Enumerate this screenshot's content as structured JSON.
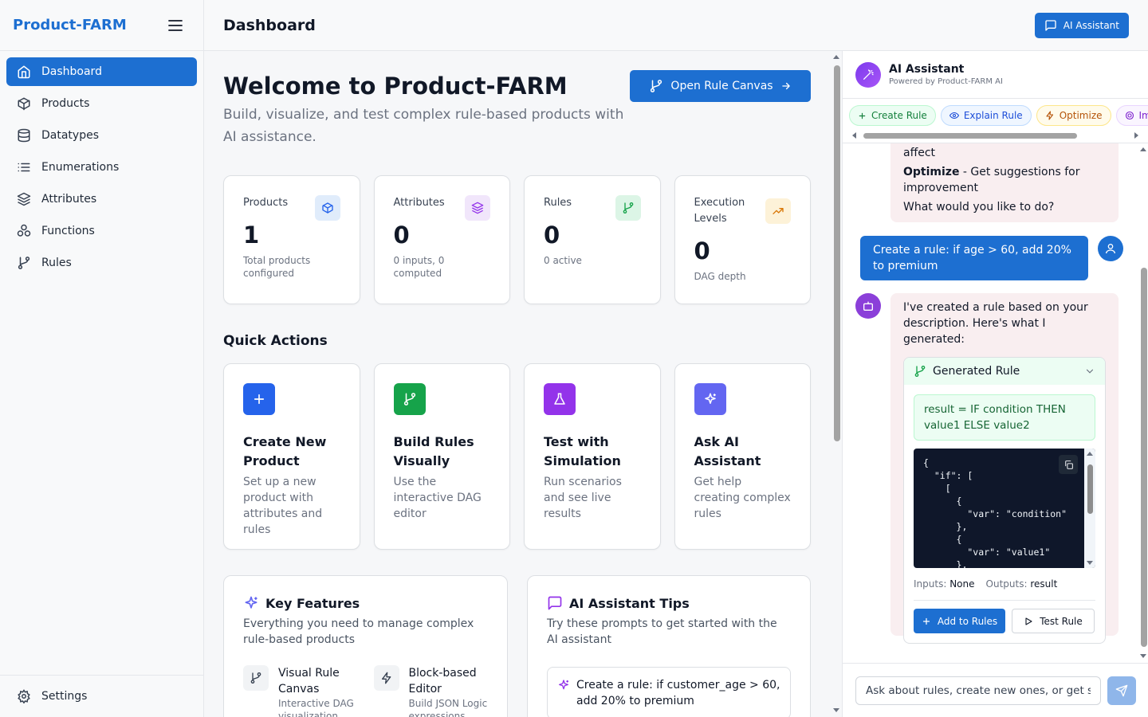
{
  "app": {
    "brand": "Product-FARM",
    "page_title": "Dashboard"
  },
  "header": {
    "ai_button": "AI Assistant"
  },
  "sidebar": {
    "items": [
      {
        "label": "Dashboard",
        "icon": "home-icon",
        "active": true
      },
      {
        "label": "Products",
        "icon": "box-icon"
      },
      {
        "label": "Datatypes",
        "icon": "database-icon"
      },
      {
        "label": "Enumerations",
        "icon": "list-icon"
      },
      {
        "label": "Attributes",
        "icon": "layers-icon"
      },
      {
        "label": "Functions",
        "icon": "cluster-icon"
      },
      {
        "label": "Rules",
        "icon": "git-branch-icon"
      }
    ],
    "settings": "Settings"
  },
  "welcome": {
    "title": "Welcome to Product-FARM",
    "subtitle": "Build, visualize, and test complex rule-based products with AI assistance.",
    "canvas_button": "Open Rule Canvas"
  },
  "stats": [
    {
      "label": "Products",
      "value": "1",
      "note": "Total products configured",
      "icon": "box-icon",
      "color": "#2563eb",
      "bg": "#e0ecfb"
    },
    {
      "label": "Attributes",
      "value": "0",
      "note": "0 inputs, 0 computed",
      "icon": "layers-icon",
      "color": "#9333ea",
      "bg": "#f1e6fb"
    },
    {
      "label": "Rules",
      "value": "0",
      "note": "0 active",
      "icon": "git-branch-icon",
      "color": "#16a34a",
      "bg": "#dcf5e6"
    },
    {
      "label": "Execution Levels",
      "value": "0",
      "note": "DAG depth",
      "icon": "trending-up-icon",
      "color": "#d97706",
      "bg": "#fdf2d8"
    }
  ],
  "quick_actions": {
    "title": "Quick Actions",
    "items": [
      {
        "title": "Create New Product",
        "desc": "Set up a new product with attributes and rules",
        "icon": "plus-icon",
        "color": "#2563eb"
      },
      {
        "title": "Build Rules Visually",
        "desc": "Use the interactive DAG editor",
        "icon": "git-branch-icon",
        "color": "#16a34a"
      },
      {
        "title": "Test with Simulation",
        "desc": "Run scenarios and see live results",
        "icon": "flask-icon",
        "color": "#9333ea"
      },
      {
        "title": "Ask AI Assistant",
        "desc": "Get help creating complex rules",
        "icon": "sparkles-icon",
        "color": "#6366f1"
      }
    ]
  },
  "key_features": {
    "title": "Key Features",
    "subtitle": "Everything you need to manage complex rule-based products",
    "items": [
      {
        "title": "Visual Rule Canvas",
        "desc": "Interactive DAG visualization with",
        "icon": "git-branch-icon"
      },
      {
        "title": "Block-based Editor",
        "desc": "Build JSON Logic expressions",
        "icon": "zap-icon"
      }
    ]
  },
  "ai_tips": {
    "title": "AI Assistant Tips",
    "subtitle": "Try these prompts to get started with the AI assistant",
    "tip": "Create a rule: if customer_age > 60, add 20% to premium"
  },
  "assistant": {
    "name": "AI Assistant",
    "powered": "Powered by Product-FARM AI",
    "chips": [
      {
        "label": "Create Rule",
        "icon": "plus-icon",
        "color": "#15803d",
        "bg": "#ecfdf3",
        "border": "#bbf7d0"
      },
      {
        "label": "Explain Rule",
        "icon": "eye-icon",
        "color": "#1d4ed8",
        "bg": "#eff6ff",
        "border": "#bfdbfe"
      },
      {
        "label": "Optimize",
        "icon": "zap-icon",
        "color": "#b45309",
        "bg": "#fffbeb",
        "border": "#fde68a"
      },
      {
        "label": "Im",
        "icon": "target-icon",
        "color": "#7e22ce",
        "bg": "#faf5ff",
        "border": "#e9d5ff"
      }
    ],
    "prev_ai": {
      "line1": "affect",
      "optimize_label": "Optimize",
      "optimize_text": " - Get suggestions for improvement",
      "question": "What would you like to do?"
    },
    "user_message": "Create a rule: if age > 60, add 20% to premium",
    "ai_message": "I've created a rule based on your description. Here's what I generated:",
    "rule": {
      "title": "Generated Rule",
      "expression": "result = IF condition THEN value1 ELSE value2",
      "code": "{\n  \"if\": [\n    [\n      {\n        \"var\": \"condition\"\n      },\n      {\n        \"var\": \"value1\"\n      },",
      "inputs_label": "Inputs:",
      "inputs_value": "None",
      "outputs_label": "Outputs:",
      "outputs_value": "result",
      "add_button": "Add to Rules",
      "test_button": "Test Rule"
    },
    "input_placeholder": "Ask about rules, create new ones, or get suggestions..."
  }
}
